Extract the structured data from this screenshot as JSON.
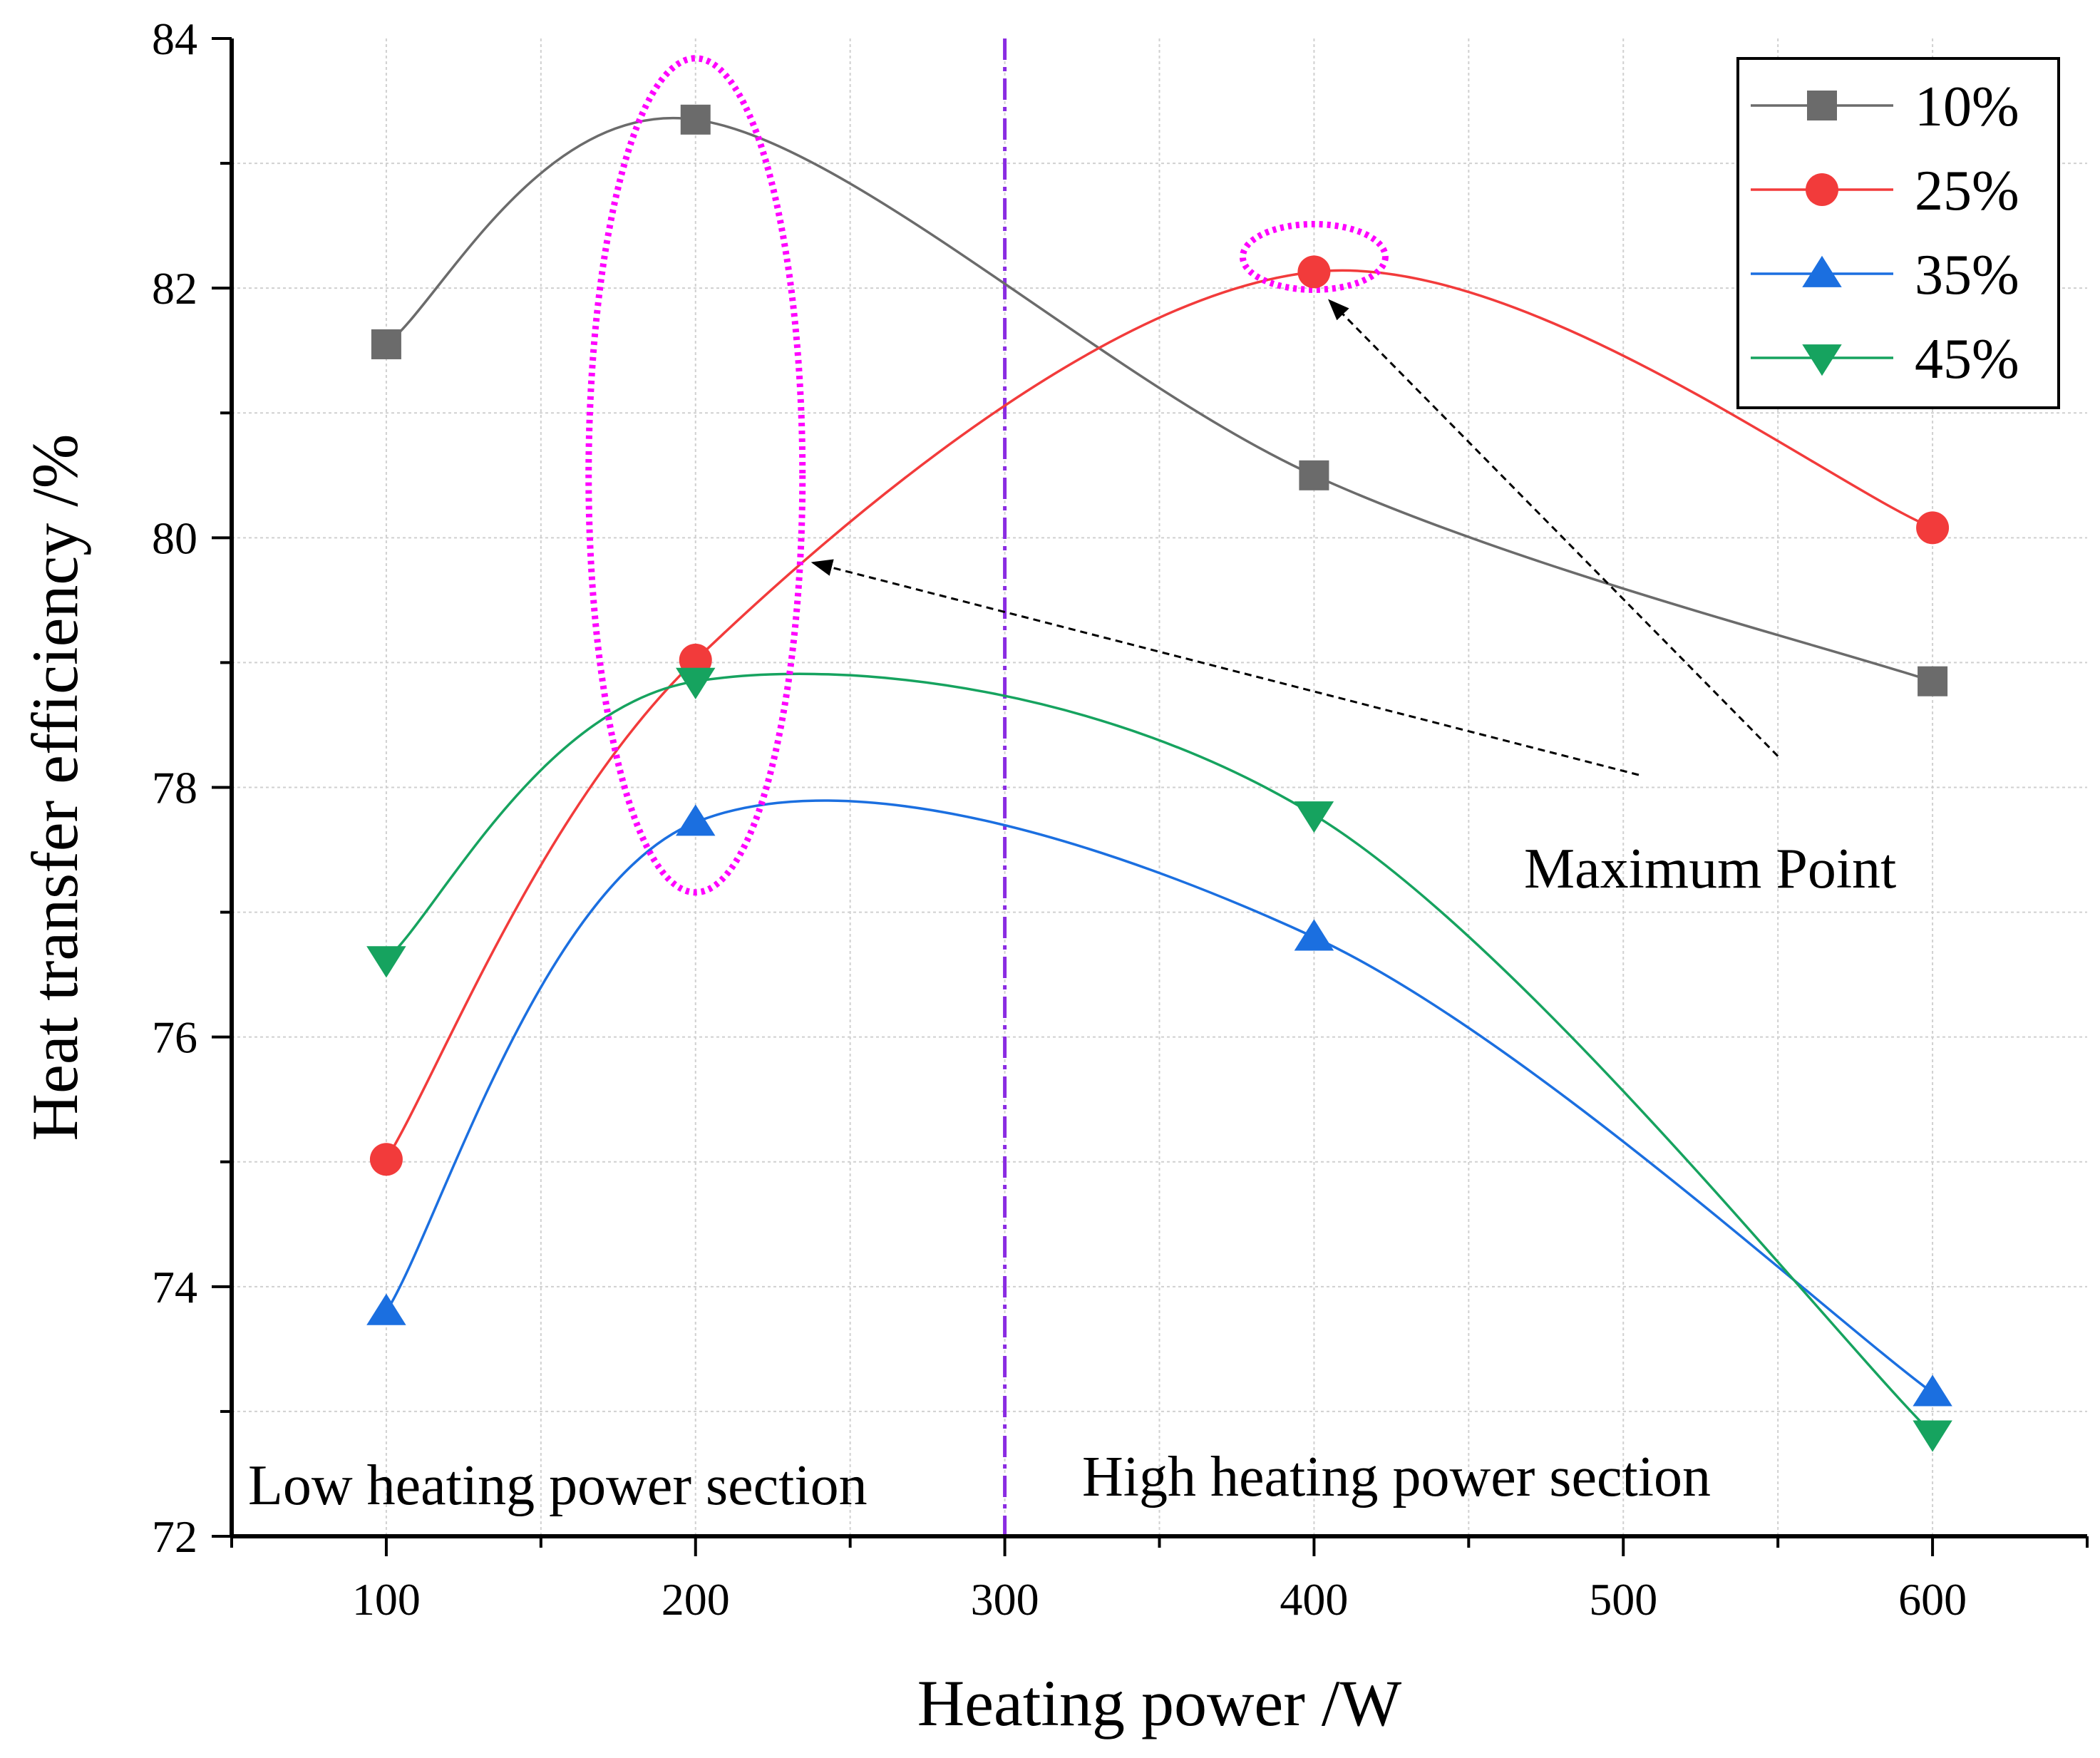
{
  "chart_data": {
    "type": "line",
    "title": "",
    "xlabel": "Heating power /W",
    "ylabel": "Heat transfer efficiency /%",
    "xlim": [
      50,
      650
    ],
    "ylim": [
      72,
      84
    ],
    "xticks": [
      100,
      200,
      300,
      400,
      500,
      600
    ],
    "yticks": [
      72,
      74,
      76,
      78,
      80,
      82,
      84
    ],
    "xtick_labels": [
      "100",
      "200",
      "300",
      "400",
      "500",
      "600"
    ],
    "ytick_labels": [
      "72",
      "74",
      "76",
      "78",
      "80",
      "82",
      "84"
    ],
    "grid": true,
    "legend_position": "top-right",
    "x": [
      100,
      200,
      400,
      600
    ],
    "series": [
      {
        "name": "10%",
        "marker": "square",
        "color": "#6b6b6b",
        "values": [
          81.55,
          83.35,
          80.5,
          78.85
        ]
      },
      {
        "name": "25%",
        "marker": "circle",
        "color": "#f23b3b",
        "values": [
          75.02,
          79.02,
          82.13,
          80.08
        ]
      },
      {
        "name": "35%",
        "marker": "triangle-up",
        "color": "#1b6fe0",
        "values": [
          73.8,
          77.72,
          76.8,
          73.15
        ]
      },
      {
        "name": "45%",
        "marker": "triangle-down",
        "color": "#16a35f",
        "values": [
          76.62,
          78.85,
          77.78,
          72.82
        ]
      }
    ],
    "divider": {
      "x": 300,
      "color": "#8a2be2",
      "style": "dash-dot"
    },
    "annotations": {
      "low_section": "Low heating power section",
      "high_section": "High heating power section",
      "maximum": "Maximum Point"
    },
    "highlight_color": "#ff00ff"
  }
}
